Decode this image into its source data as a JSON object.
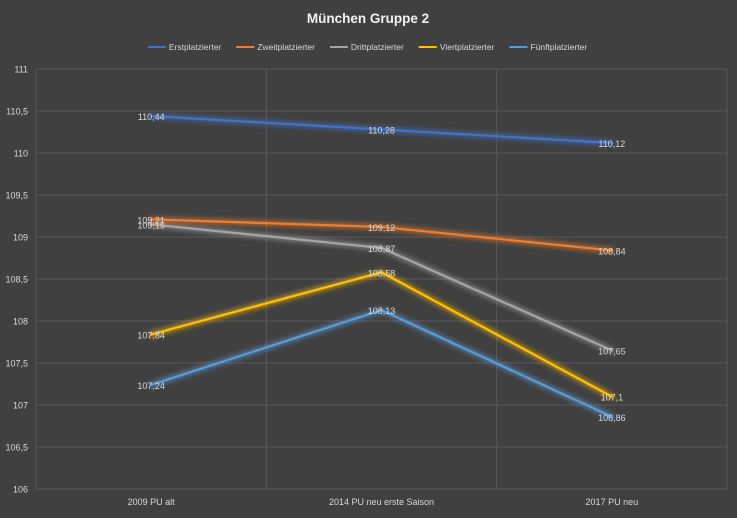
{
  "chart_data": {
    "type": "line",
    "title": "München Gruppe 2",
    "xlabel": "",
    "ylabel": "",
    "categories": [
      "2009 PU alt",
      "2014 PU neu erste Saison",
      "2017 PU neu"
    ],
    "ylim": [
      106,
      111
    ],
    "yticks": [
      "106",
      "106,5",
      "107",
      "107,5",
      "108",
      "108,5",
      "109",
      "109,5",
      "110",
      "110,5",
      "111"
    ],
    "ytick_values": [
      106,
      106.5,
      107,
      107.5,
      108,
      108.5,
      109,
      109.5,
      110,
      110.5,
      111
    ],
    "grid": true,
    "legend_position": "top",
    "series": [
      {
        "name": "Erstplatzierter",
        "color": "#4472C4",
        "values": [
          110.44,
          110.28,
          110.12
        ],
        "labels": [
          "110,44",
          "110,28",
          "110,12"
        ]
      },
      {
        "name": "Zweitplatzierter",
        "color": "#ED7D31",
        "values": [
          109.21,
          109.12,
          108.84
        ],
        "labels": [
          "109,21",
          "109,12",
          "108,84"
        ]
      },
      {
        "name": "Drittplatzierter",
        "color": "#A5A5A5",
        "values": [
          109.15,
          108.87,
          107.65
        ],
        "labels": [
          "109,15",
          "108,87",
          "107,65"
        ]
      },
      {
        "name": "Viertplatzierter",
        "color": "#FFC000",
        "values": [
          107.84,
          108.58,
          107.1
        ],
        "labels": [
          "107,84",
          "108,58",
          "107,1"
        ]
      },
      {
        "name": "Fünftplatzierter",
        "color": "#5B9BD5",
        "values": [
          107.24,
          108.13,
          106.86
        ],
        "labels": [
          "107,24",
          "108,13",
          "106,86"
        ]
      }
    ]
  },
  "colors": {
    "background": "#404040",
    "gridline": "#595959",
    "text": "#D9D9D9",
    "title": "#F2F2F2"
  }
}
